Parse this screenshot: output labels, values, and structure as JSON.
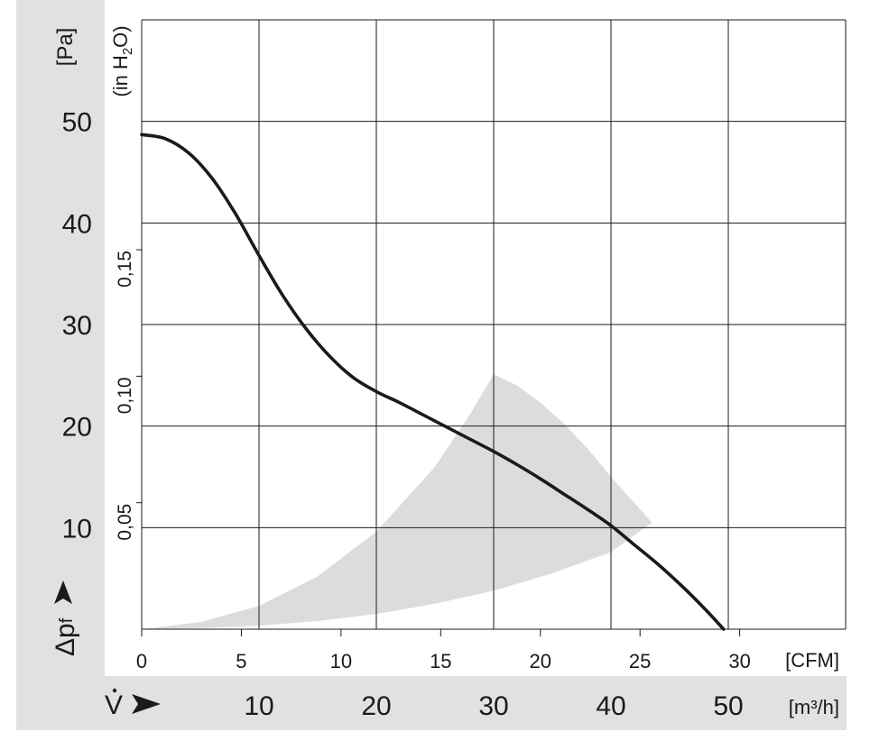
{
  "chart_data": {
    "type": "line",
    "title": "",
    "y_axis": {
      "symbol": "Δp",
      "subscript": "f",
      "unit": "[Pa]",
      "ticks": [
        "10",
        "20",
        "30",
        "40",
        "50"
      ],
      "range": [
        0,
        60
      ]
    },
    "y_axis_secondary": {
      "unit": "(in H",
      "unit_sub": "2",
      "unit_tail": "O)",
      "ticks": [
        "0,05",
        "0,10",
        "0,15"
      ]
    },
    "x_axis": {
      "symbol": "V",
      "unit": "[m³/h]",
      "ticks": [
        "10",
        "20",
        "30",
        "40",
        "50"
      ],
      "range": [
        0,
        60
      ]
    },
    "x_axis_secondary": {
      "unit": "[CFM]",
      "ticks": [
        "0",
        "5",
        "10",
        "15",
        "20",
        "25",
        "30"
      ]
    },
    "grid": true,
    "series": [
      {
        "color": "#1a1a1a",
        "x": [
          0,
          2,
          4,
          6,
          8,
          10,
          12,
          14,
          16,
          18,
          20,
          22,
          24,
          26,
          28,
          30,
          32,
          34,
          36,
          38,
          40,
          42,
          44,
          46,
          48,
          49.6
        ],
        "y": [
          48.7,
          48.3,
          46.9,
          44.4,
          40.9,
          36.8,
          32.9,
          29.6,
          26.9,
          24.8,
          23.4,
          22.3,
          21.1,
          19.9,
          18.7,
          17.5,
          16.2,
          14.8,
          13.3,
          11.8,
          10.2,
          8.3,
          6.4,
          4.3,
          2.0,
          0
        ]
      }
    ],
    "operating_range": {
      "color": "#dcdcdc",
      "outer_edge": {
        "x": [
          0,
          5,
          10,
          15,
          20,
          25,
          28,
          30,
          32,
          34,
          36,
          38,
          40,
          43.5
        ],
        "y": [
          0,
          0.7,
          2.3,
          5.2,
          9.6,
          16.0,
          21.2,
          25.1,
          24.0,
          22.3,
          20.2,
          17.8,
          15.0,
          10.5
        ]
      },
      "inner_edge": {
        "x": [
          43.5,
          40,
          35,
          30,
          25,
          20,
          15,
          10,
          5,
          0
        ],
        "y": [
          10.5,
          7.6,
          5.5,
          3.8,
          2.5,
          1.5,
          0.8,
          0.35,
          0.1,
          0
        ]
      }
    }
  }
}
